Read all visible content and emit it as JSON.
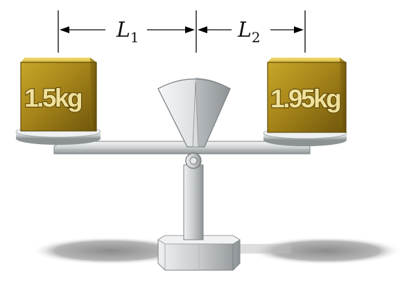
{
  "dimensions": {
    "left": {
      "symbol": "L",
      "subscript": "1"
    },
    "right": {
      "symbol": "L",
      "subscript": "2"
    }
  },
  "weights": {
    "left": {
      "label": "1.5kg"
    },
    "right": {
      "label": "1.95kg"
    }
  },
  "colors": {
    "gold": "#b8951c",
    "metal": "#c9ccce",
    "shadow": "#9a9a9a"
  }
}
